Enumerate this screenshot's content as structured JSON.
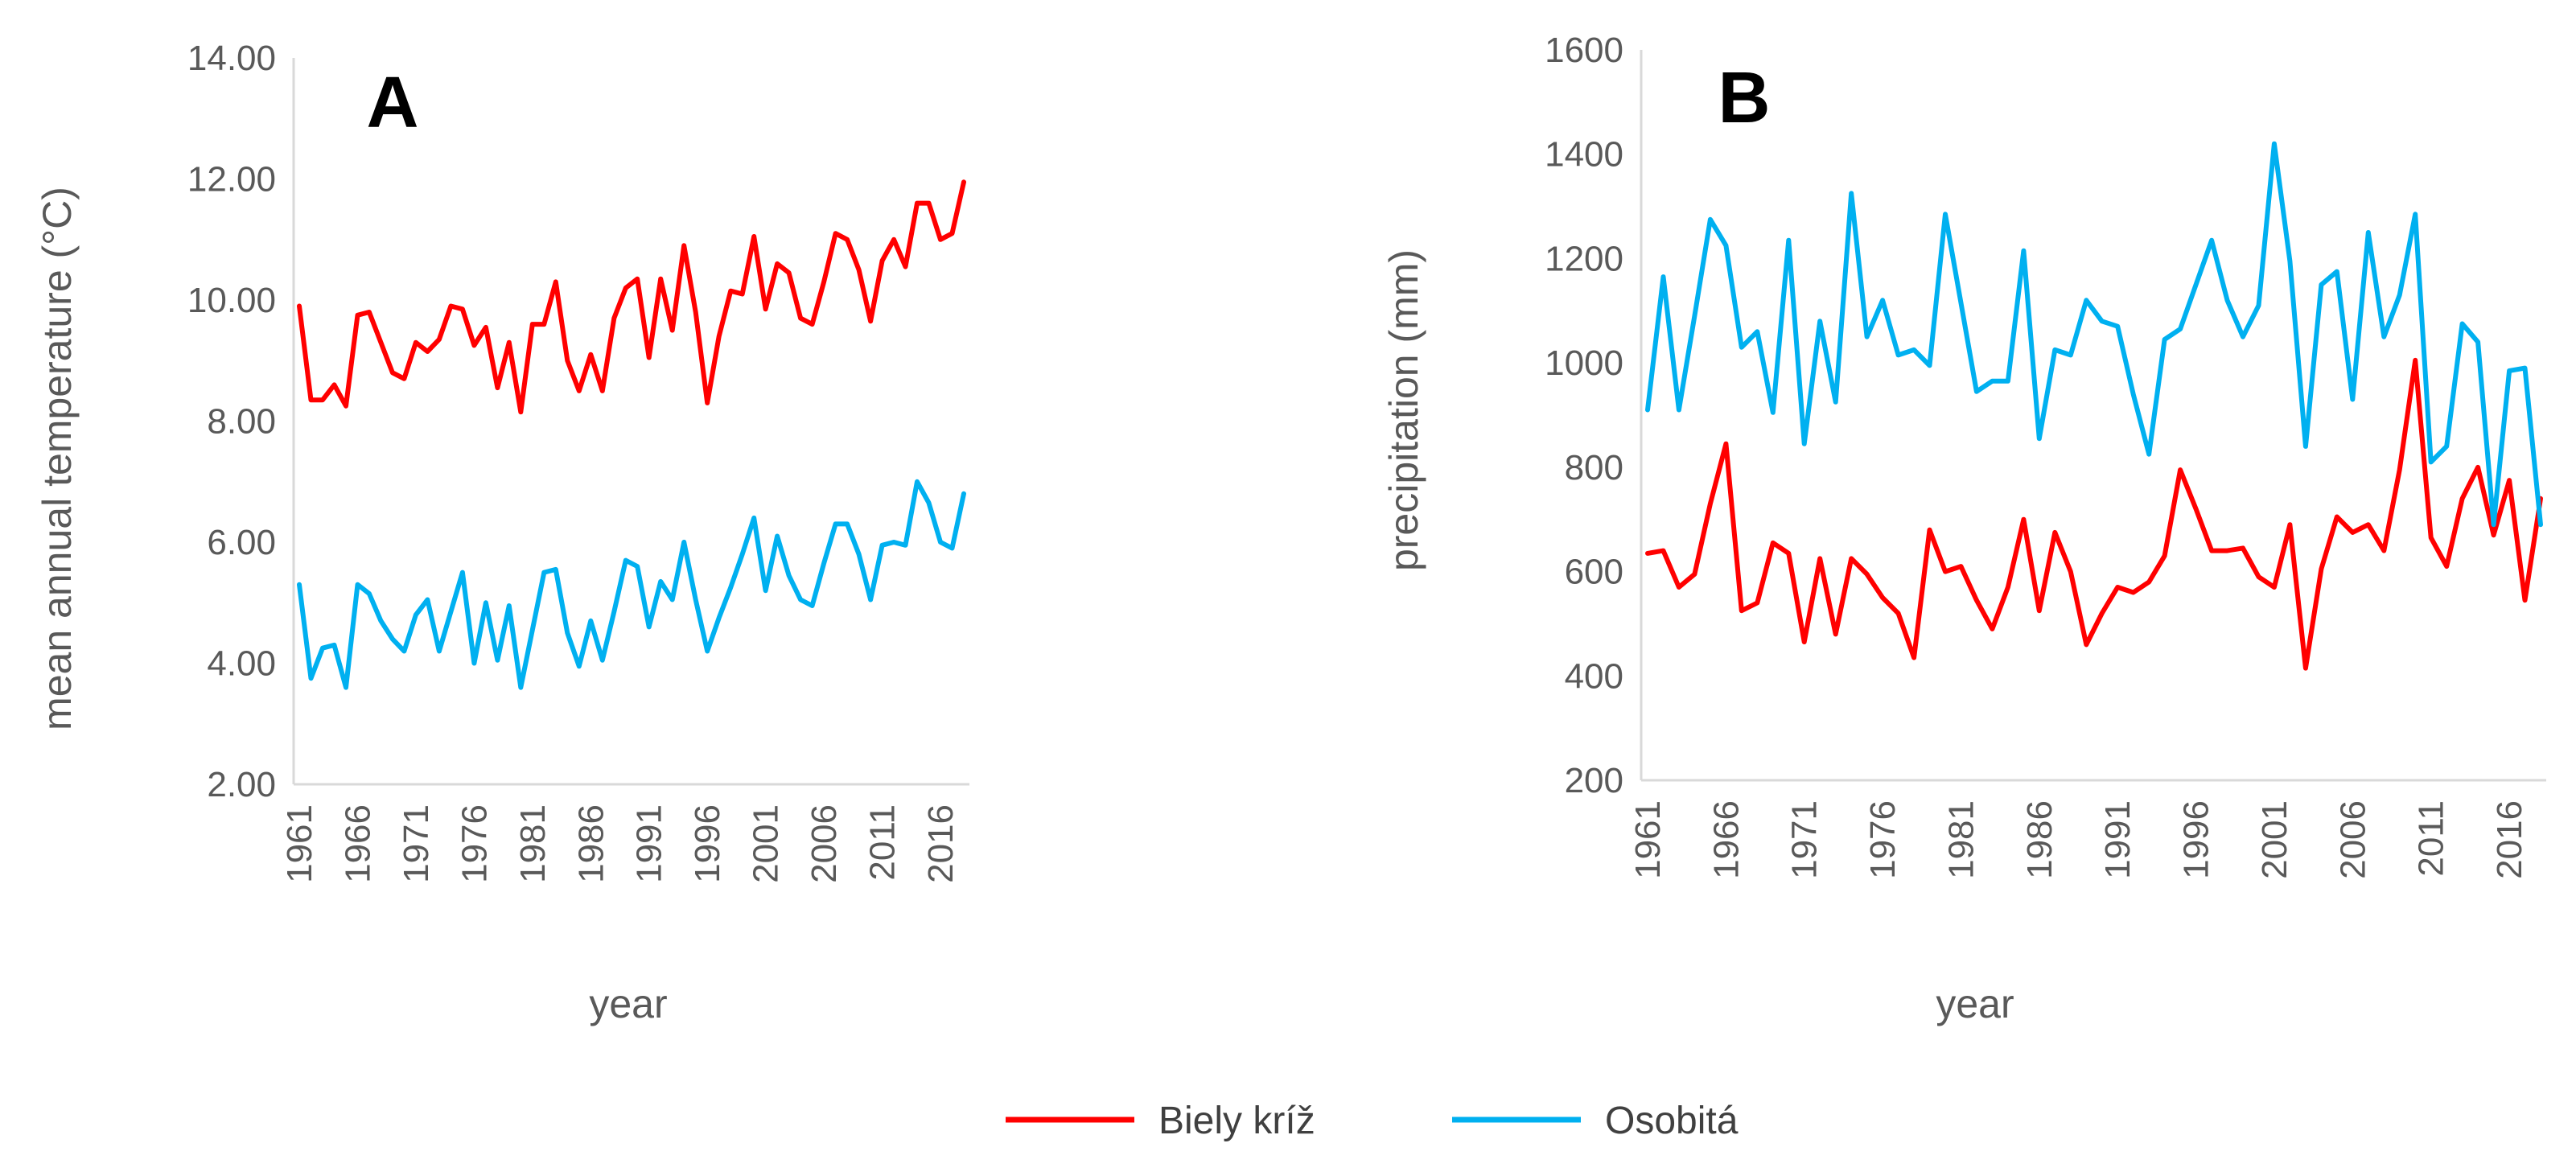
{
  "chart_data": [
    {
      "type": "line",
      "panel_label": "A",
      "xlabel": "year",
      "ylabel": "mean annual temperature (°C)",
      "ylim": [
        2,
        14
      ],
      "yticks": [
        "2.00",
        "4.00",
        "6.00",
        "8.00",
        "10.00",
        "12.00",
        "14.00"
      ],
      "xticks": [
        "1961",
        "1966",
        "1971",
        "1976",
        "1981",
        "1986",
        "1991",
        "1996",
        "2001",
        "2006",
        "2011",
        "2016"
      ],
      "x_start": 1961,
      "x_end": 2018,
      "series": [
        {
          "name": "Biely kríž",
          "color": "#ff0000",
          "values": [
            9.9,
            8.35,
            8.35,
            8.6,
            8.25,
            9.75,
            9.8,
            9.3,
            8.8,
            8.7,
            9.3,
            9.15,
            9.35,
            9.9,
            9.85,
            9.25,
            9.55,
            8.55,
            9.3,
            8.15,
            9.6,
            9.6,
            10.3,
            9.0,
            8.5,
            9.1,
            8.5,
            9.7,
            10.2,
            10.35,
            9.05,
            10.35,
            9.5,
            10.9,
            9.8,
            8.3,
            9.4,
            10.15,
            10.1,
            11.05,
            9.85,
            10.6,
            10.45,
            9.7,
            9.6,
            10.3,
            11.1,
            11.0,
            10.5,
            9.65,
            10.65,
            11.0,
            10.55,
            11.6,
            11.6,
            11.0,
            11.1,
            11.95
          ]
        },
        {
          "name": "Osobitá",
          "color": "#00b0f0",
          "values": [
            5.3,
            3.75,
            4.25,
            4.3,
            3.6,
            5.3,
            5.15,
            4.7,
            4.4,
            4.2,
            4.8,
            5.05,
            4.2,
            4.85,
            5.5,
            4.0,
            5.0,
            4.05,
            4.95,
            3.6,
            4.55,
            5.5,
            5.55,
            4.5,
            3.95,
            4.7,
            4.05,
            4.85,
            5.7,
            5.6,
            4.6,
            5.35,
            5.05,
            6.0,
            5.05,
            4.2,
            4.75,
            5.25,
            5.8,
            6.4,
            5.2,
            6.1,
            5.45,
            5.05,
            4.95,
            5.65,
            6.3,
            6.3,
            5.8,
            5.05,
            5.95,
            6.0,
            5.95,
            7.0,
            6.65,
            6.0,
            5.9,
            6.8
          ]
        }
      ]
    },
    {
      "type": "line",
      "panel_label": "B",
      "xlabel": "year",
      "ylabel": "precipitation (mm)",
      "ylim": [
        200,
        1600
      ],
      "yticks": [
        "200",
        "400",
        "600",
        "800",
        "1000",
        "1200",
        "1400",
        "1600"
      ],
      "xticks": [
        "1961",
        "1966",
        "1971",
        "1976",
        "1981",
        "1986",
        "1991",
        "1996",
        "2001",
        "2006",
        "2011",
        "2016"
      ],
      "x_start": 1961,
      "x_end": 2018,
      "series": [
        {
          "name": "Biely kríž",
          "color": "#ff0000",
          "values": [
            635,
            640,
            570,
            595,
            730,
            845,
            525,
            540,
            655,
            635,
            465,
            625,
            480,
            625,
            595,
            550,
            520,
            435,
            680,
            600,
            610,
            545,
            490,
            570,
            700,
            525,
            675,
            600,
            460,
            520,
            570,
            560,
            580,
            630,
            795,
            720,
            640,
            640,
            645,
            590,
            570,
            690,
            415,
            605,
            705,
            675,
            690,
            640,
            795,
            1005,
            665,
            610,
            740,
            800,
            670,
            775,
            545,
            740
          ]
        },
        {
          "name": "Osobitá",
          "color": "#00b0f0",
          "values": [
            910,
            1165,
            910,
            1090,
            1275,
            1225,
            1030,
            1060,
            905,
            1235,
            845,
            1080,
            925,
            1325,
            1050,
            1120,
            1015,
            1025,
            995,
            1285,
            1115,
            945,
            965,
            965,
            1215,
            855,
            1025,
            1015,
            1120,
            1080,
            1070,
            940,
            825,
            1045,
            1065,
            1150,
            1235,
            1120,
            1050,
            1110,
            1420,
            1195,
            840,
            1150,
            1175,
            930,
            1250,
            1050,
            1130,
            1285,
            810,
            840,
            1075,
            1040,
            690,
            985,
            990,
            690
          ]
        }
      ]
    }
  ],
  "legend": [
    {
      "label": "Biely kríž",
      "color": "#ff0000"
    },
    {
      "label": "Osobitá",
      "color": "#00b0f0"
    }
  ]
}
